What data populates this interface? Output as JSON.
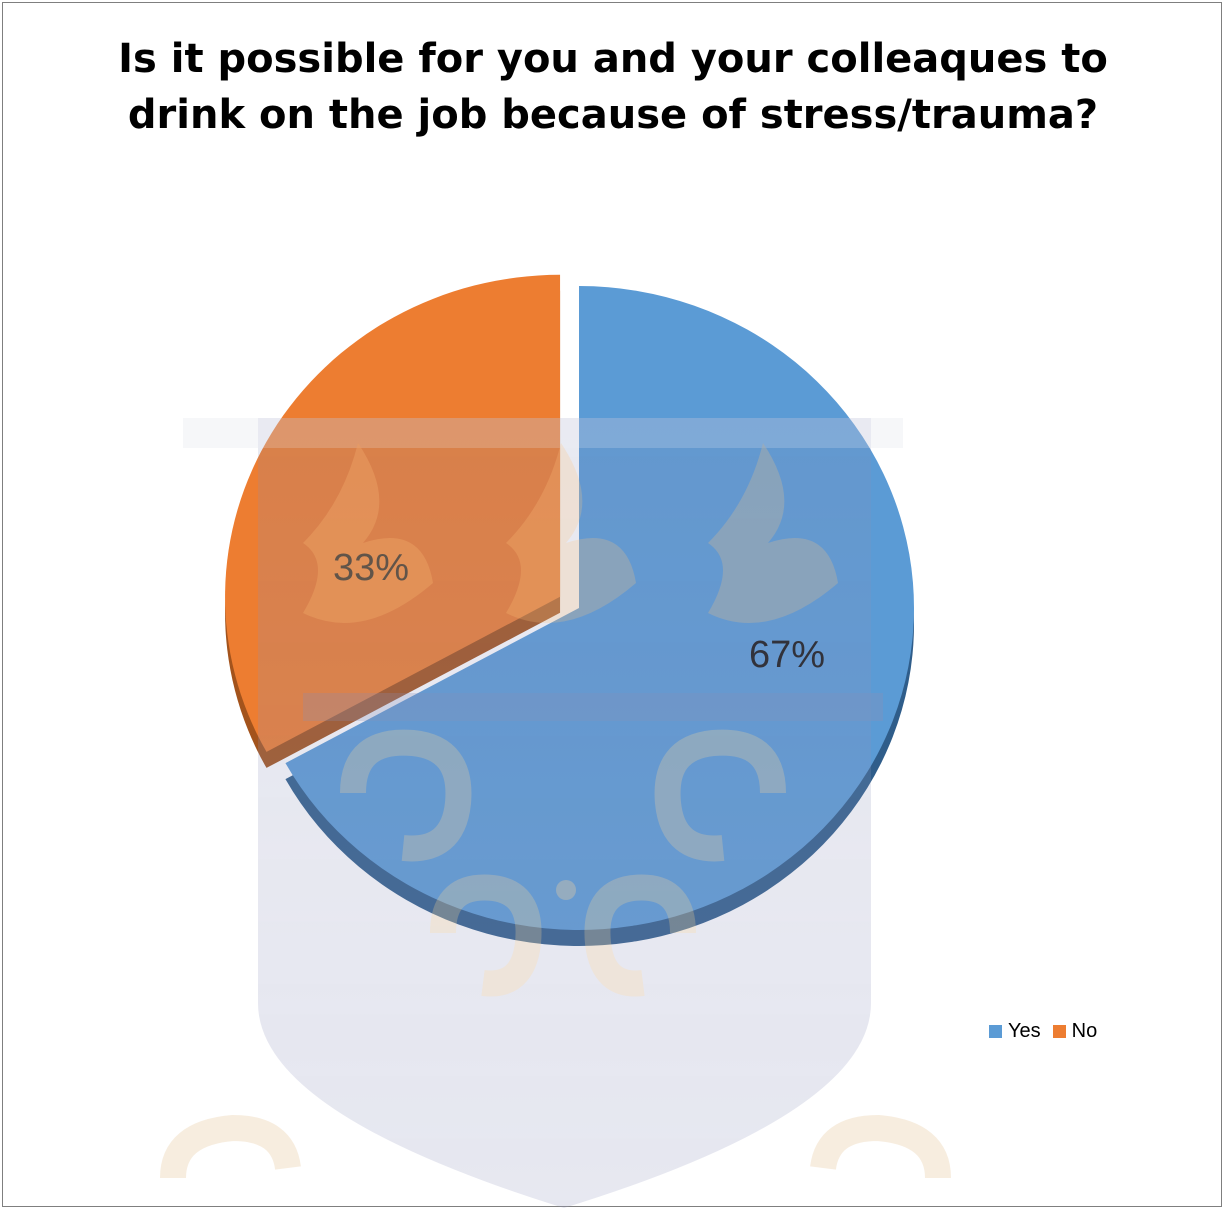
{
  "chart_data": {
    "type": "pie",
    "title": "Is it possible for you and your colleaques to\ndrink on the job because of stress/trauma?",
    "categories": [
      "Yes",
      "No"
    ],
    "values": [
      67,
      33
    ],
    "data_labels": [
      "67%",
      "33%"
    ],
    "colors": [
      "#5b9bd5",
      "#ed7d31"
    ],
    "legend_position": "right",
    "style": "3d-exploded"
  },
  "watermark_icon": "university-crest-watermark"
}
